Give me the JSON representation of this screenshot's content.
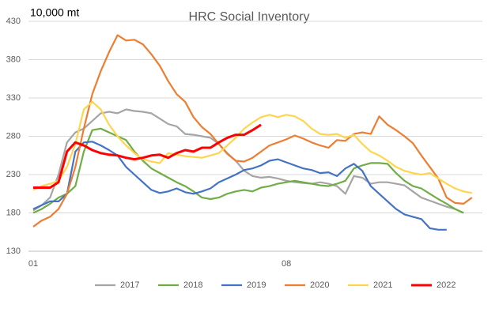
{
  "chart_data": {
    "type": "line",
    "title": "HRC Social Inventory",
    "y_unit_label": "10,000 mt",
    "categories": [
      "01",
      null,
      null,
      null,
      null,
      null,
      null,
      null,
      null,
      null,
      null,
      null,
      null,
      null,
      null,
      null,
      null,
      null,
      null,
      null,
      null,
      null,
      null,
      null,
      null,
      null,
      null,
      null,
      null,
      null,
      "08",
      null,
      null,
      null,
      null,
      null,
      null,
      null,
      null,
      null,
      null,
      null,
      null,
      null,
      null,
      null,
      null,
      null,
      null,
      null,
      null,
      null,
      null
    ],
    "ylim": [
      130,
      430
    ],
    "yticks": [
      130,
      180,
      230,
      280,
      330,
      380,
      430
    ],
    "grid": true,
    "legend": "bottom",
    "series": [
      {
        "name": "2017",
        "color": "#a5a5a5",
        "values": [
          183,
          190,
          200,
          230,
          272,
          285,
          290,
          300,
          310,
          312,
          310,
          315,
          313,
          312,
          310,
          303,
          296,
          293,
          283,
          282,
          280,
          278,
          270,
          258,
          248,
          235,
          228,
          226,
          227,
          225,
          222,
          220,
          219,
          218,
          220,
          218,
          215,
          205,
          228,
          226,
          218,
          220,
          220,
          218,
          216,
          208,
          200,
          196,
          192,
          188,
          185,
          180,
          null
        ]
      },
      {
        "name": "2018",
        "color": "#70ad47",
        "values": [
          180,
          185,
          192,
          200,
          205,
          215,
          260,
          288,
          290,
          285,
          280,
          275,
          260,
          248,
          238,
          232,
          226,
          220,
          215,
          208,
          200,
          198,
          200,
          205,
          208,
          210,
          208,
          213,
          215,
          218,
          220,
          222,
          220,
          218,
          216,
          215,
          218,
          222,
          238,
          242,
          245,
          245,
          244,
          232,
          222,
          215,
          212,
          205,
          198,
          192,
          185,
          180,
          null
        ]
      },
      {
        "name": "2019",
        "color": "#4472c4",
        "values": [
          185,
          190,
          195,
          195,
          205,
          260,
          272,
          273,
          268,
          262,
          255,
          240,
          230,
          220,
          210,
          206,
          208,
          212,
          207,
          205,
          208,
          212,
          220,
          225,
          230,
          236,
          238,
          242,
          248,
          250,
          246,
          242,
          238,
          236,
          232,
          233,
          228,
          238,
          244,
          235,
          215,
          205,
          195,
          185,
          178,
          175,
          172,
          160,
          158,
          158,
          null,
          null,
          null
        ]
      },
      {
        "name": "2020",
        "color": "#ed7d31",
        "values": [
          162,
          170,
          175,
          185,
          205,
          240,
          290,
          335,
          365,
          390,
          412,
          405,
          406,
          400,
          387,
          372,
          352,
          335,
          325,
          305,
          292,
          283,
          270,
          257,
          248,
          247,
          252,
          260,
          268,
          272,
          276,
          281,
          277,
          272,
          268,
          265,
          275,
          274,
          283,
          285,
          283,
          306,
          295,
          288,
          280,
          271,
          255,
          240,
          225,
          200,
          193,
          192,
          200
        ]
      },
      {
        "name": "2021",
        "color": "#ffd54f",
        "values": [
          210,
          215,
          218,
          222,
          240,
          270,
          315,
          325,
          315,
          295,
          280,
          268,
          258,
          250,
          247,
          245,
          258,
          256,
          254,
          253,
          252,
          255,
          258,
          268,
          278,
          290,
          298,
          305,
          308,
          305,
          308,
          306,
          300,
          290,
          283,
          282,
          283,
          278,
          282,
          270,
          260,
          255,
          248,
          240,
          235,
          232,
          230,
          232,
          225,
          218,
          212,
          208,
          206
        ]
      },
      {
        "name": "2022",
        "color": "#ff0000",
        "values": [
          213,
          213,
          213,
          220,
          260,
          272,
          268,
          262,
          258,
          256,
          255,
          252,
          250,
          252,
          255,
          256,
          252,
          258,
          262,
          260,
          265,
          265,
          272,
          278,
          282,
          282,
          288,
          295,
          null,
          null,
          null,
          null,
          null,
          null,
          null,
          null,
          null,
          null,
          null,
          null,
          null,
          null,
          null,
          null,
          null,
          null,
          null,
          null,
          null,
          null,
          null,
          null,
          null
        ]
      }
    ]
  }
}
